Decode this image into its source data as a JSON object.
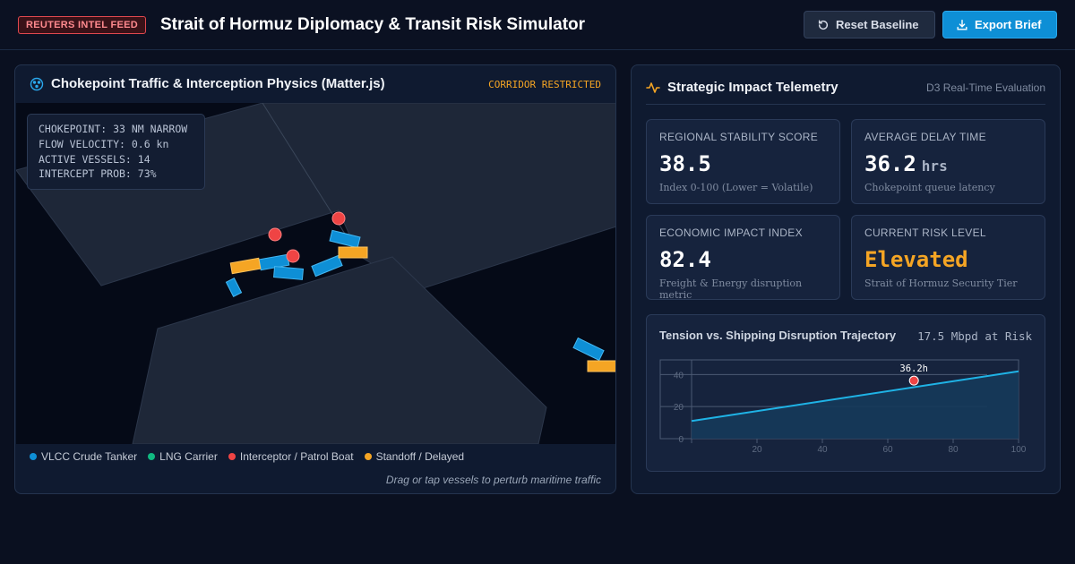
{
  "header": {
    "badge": "REUTERS INTEL FEED",
    "title": "Strait of Hormuz Diplomacy & Transit Risk Simulator",
    "reset_label": "Reset Baseline",
    "export_label": "Export Brief"
  },
  "sim_panel": {
    "title": "Chokepoint Traffic & Interception Physics (Matter.js)",
    "status": "CORRIDOR RESTRICTED",
    "overlay": [
      "CHOKEPOINT: 33 NM NARROW",
      "FLOW VELOCITY: 0.6 kn",
      "ACTIVE VESSELS: 14",
      "INTERCEPT PROB: 73%"
    ],
    "legend": [
      {
        "label": "VLCC Crude Tanker",
        "color": "#0e8fd6"
      },
      {
        "label": "LNG Carrier",
        "color": "#10b981"
      },
      {
        "label": "Interceptor / Patrol Boat",
        "color": "#ef4444"
      },
      {
        "label": "Standoff / Delayed",
        "color": "#f5a524"
      }
    ],
    "hint": "Drag or tap vessels to perturb maritime traffic"
  },
  "telemetry": {
    "title": "Strategic Impact Telemetry",
    "subtitle": "D3 Real-Time Evaluation",
    "cards": [
      {
        "label": "Regional Stability Score",
        "value": "38.5",
        "unit": "",
        "sub": "Index 0-100 (Lower = Volatile)",
        "color": "#ffffff"
      },
      {
        "label": "Average Delay Time",
        "value": "36.2",
        "unit": "hrs",
        "sub": "Chokepoint queue latency",
        "color": "#ffffff"
      },
      {
        "label": "Economic Impact Index",
        "value": "82.4",
        "unit": "",
        "sub": "Freight & Energy disruption metric",
        "color": "#ffffff"
      },
      {
        "label": "Current Risk Level",
        "value": "Elevated",
        "unit": "",
        "sub": "Strait of Hormuz Security Tier",
        "color": "#f5a524"
      }
    ]
  },
  "chart_data": {
    "type": "area",
    "title": "Tension vs. Shipping Disruption Trajectory",
    "right_label": "17.5 Mbpd at Risk",
    "xlabel": "",
    "ylabel": "",
    "x_ticks": [
      20,
      40,
      60,
      80,
      100
    ],
    "y_ticks": [
      0,
      20,
      40
    ],
    "xlim": [
      0,
      100
    ],
    "ylim": [
      0,
      48
    ],
    "series": [
      {
        "x": [
          0,
          100
        ],
        "y": [
          11,
          42
        ]
      }
    ],
    "marker": {
      "x": 68,
      "y": 36.2,
      "label": "36.2h"
    },
    "grid": true
  }
}
